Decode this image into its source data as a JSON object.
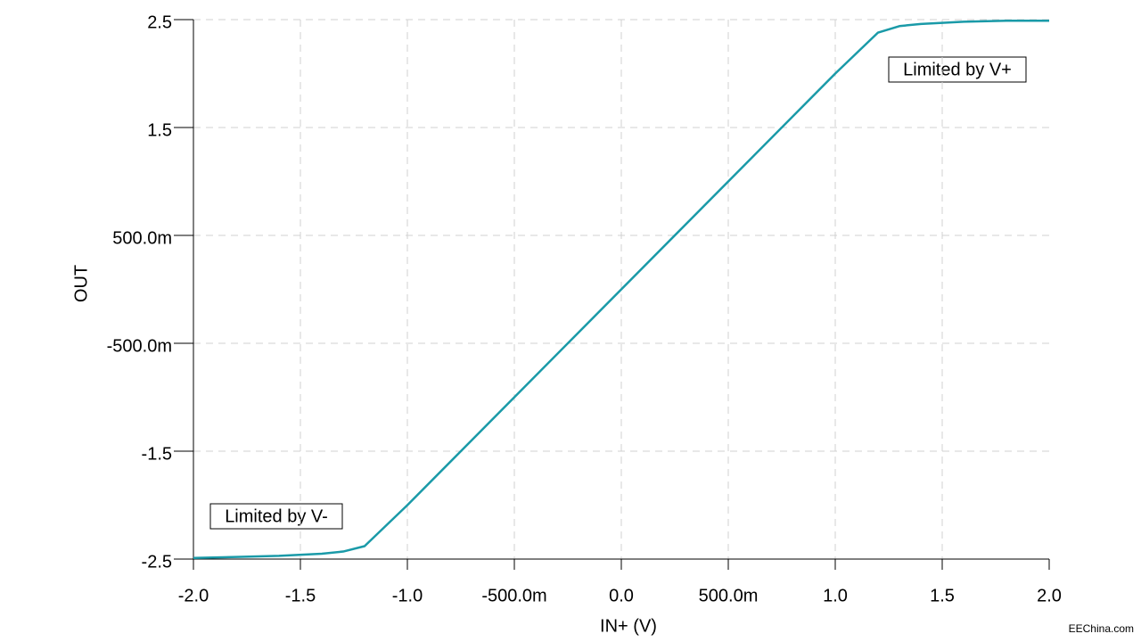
{
  "chart_data": {
    "type": "line",
    "x_label": "IN+ (V)",
    "y_label": "OUT",
    "x": [
      -2.0,
      -1.8,
      -1.6,
      -1.4,
      -1.3,
      -1.2,
      -1.0,
      -0.5,
      0.0,
      0.5,
      1.0,
      1.2,
      1.3,
      1.4,
      1.6,
      1.8,
      2.0
    ],
    "series": [
      {
        "name": "OUT",
        "color": "#1a9aa8",
        "values": [
          -2.49,
          -2.48,
          -2.47,
          -2.45,
          -2.43,
          -2.38,
          -2.0,
          -1.0,
          0.0,
          1.0,
          2.0,
          2.38,
          2.44,
          2.46,
          2.48,
          2.49,
          2.49
        ]
      }
    ],
    "xlim": [
      -2.0,
      2.0
    ],
    "xticks": [
      {
        "value": -2.0,
        "label": "-2.0"
      },
      -1.5,
      {
        "value": -1.0,
        "label": "-1.0"
      },
      {
        "value": -0.5,
        "label": "-500.0m"
      },
      {
        "value": 0,
        "label": "0.0"
      },
      {
        "value": 0.5,
        "label": "500.0m"
      },
      {
        "value": 1.0,
        "label": "1.0"
      },
      1.5,
      {
        "value": 2.0,
        "label": "2.0"
      }
    ],
    "ylim": [
      -2.5,
      2.5
    ],
    "yticks": [
      -2.5,
      -1.5,
      {
        "value": -0.5,
        "label": "-500.0m"
      },
      {
        "value": 0.5,
        "label": "500.0m"
      },
      1.5,
      2.5
    ],
    "grid": true,
    "annotations": [
      "Limited by V+",
      "Limited by V-"
    ],
    "watermark": "EEChina.com"
  }
}
